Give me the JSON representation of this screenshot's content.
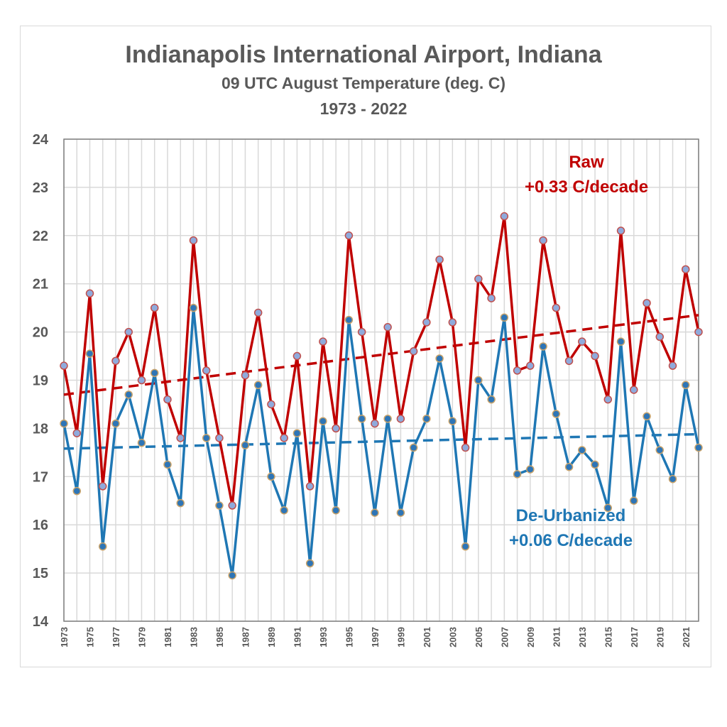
{
  "chart_data": {
    "type": "line",
    "title": "Indianapolis International Airport, Indiana",
    "subtitle": "09 UTC August Temperature (deg. C)",
    "period": "1973 - 2022",
    "xlabel": "",
    "ylabel": "",
    "ylim": [
      14,
      24
    ],
    "yticks": [
      14,
      15,
      16,
      17,
      18,
      19,
      20,
      21,
      22,
      23,
      24
    ],
    "xlim": [
      1973,
      2022
    ],
    "x": [
      1973,
      1974,
      1975,
      1976,
      1977,
      1978,
      1979,
      1980,
      1981,
      1982,
      1983,
      1984,
      1985,
      1986,
      1987,
      1988,
      1989,
      1990,
      1991,
      1992,
      1993,
      1994,
      1995,
      1996,
      1997,
      1998,
      1999,
      2000,
      2001,
      2002,
      2003,
      2004,
      2005,
      2006,
      2007,
      2008,
      2009,
      2010,
      2011,
      2012,
      2013,
      2014,
      2015,
      2016,
      2017,
      2018,
      2019,
      2020,
      2021,
      2022
    ],
    "xtick_labels": [
      "1973",
      "1975",
      "1977",
      "1979",
      "1981",
      "1983",
      "1985",
      "1987",
      "1989",
      "1991",
      "1993",
      "1995",
      "1997",
      "1999",
      "2001",
      "2003",
      "2005",
      "2007",
      "2009",
      "2011",
      "2013",
      "2015",
      "2017",
      "2019",
      "2021"
    ],
    "grid": true,
    "series": [
      {
        "name": "Raw",
        "color": "#c00000",
        "marker_fill": "#8faadc",
        "values": [
          19.3,
          17.9,
          20.8,
          16.8,
          19.4,
          20.0,
          19.0,
          20.5,
          18.6,
          17.8,
          21.9,
          19.2,
          17.8,
          16.4,
          19.1,
          20.4,
          18.5,
          17.8,
          19.5,
          16.8,
          19.8,
          18.0,
          22.0,
          20.0,
          18.1,
          20.1,
          18.2,
          19.6,
          20.2,
          21.5,
          20.2,
          17.6,
          21.1,
          20.7,
          22.4,
          19.2,
          19.3,
          21.9,
          20.5,
          19.4,
          19.8,
          19.5,
          18.6,
          22.1,
          18.8,
          20.6,
          19.9,
          19.3,
          21.3,
          20.0
        ],
        "trend": {
          "start": 18.7,
          "end": 20.35,
          "label": "+0.33 C/decade"
        }
      },
      {
        "name": "De-Urbanized",
        "color": "#1f77b4",
        "marker_fill": "#2e75b6",
        "values": [
          18.1,
          16.7,
          19.55,
          15.55,
          18.1,
          18.7,
          17.7,
          19.15,
          17.25,
          16.45,
          20.5,
          17.8,
          16.4,
          14.95,
          17.65,
          18.9,
          17.0,
          16.3,
          17.9,
          15.2,
          18.15,
          16.3,
          20.25,
          18.2,
          16.25,
          18.2,
          16.25,
          17.6,
          18.2,
          19.45,
          18.15,
          15.55,
          19.0,
          18.6,
          20.3,
          17.05,
          17.15,
          19.7,
          18.3,
          17.2,
          17.55,
          17.25,
          16.35,
          19.8,
          16.5,
          18.25,
          17.55,
          16.95,
          18.9,
          17.6
        ],
        "trend": {
          "start": 17.58,
          "end": 17.88,
          "label": "+0.06 C/decade"
        }
      }
    ],
    "annotations": [
      {
        "series": "Raw",
        "lines": [
          "Raw",
          "+0.33 C/decade"
        ],
        "color": "#c00000"
      },
      {
        "series": "De-Urbanized",
        "lines": [
          "De-Urbanized",
          "+0.06 C/decade"
        ],
        "color": "#1f77b4"
      }
    ]
  }
}
